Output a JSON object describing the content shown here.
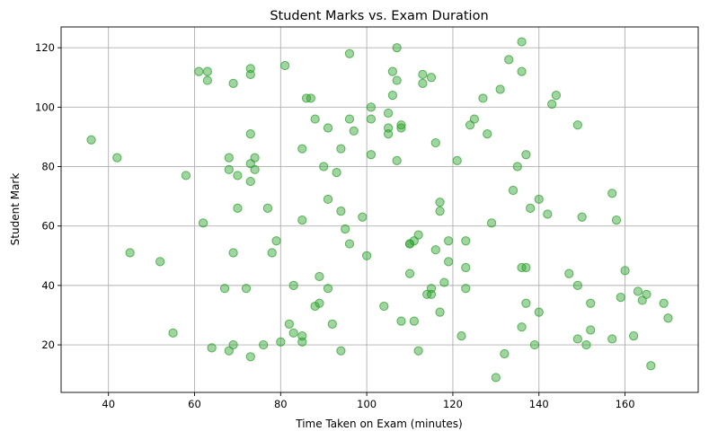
{
  "chart_data": {
    "type": "scatter",
    "title": "Student Marks vs. Exam Duration",
    "xlabel": "Time Taken on Exam (minutes)",
    "ylabel": "Student Mark",
    "xlim": [
      29,
      177
    ],
    "ylim": [
      4,
      127
    ],
    "xticks": [
      40,
      60,
      80,
      100,
      120,
      140,
      160
    ],
    "yticks": [
      20,
      40,
      60,
      80,
      100,
      120
    ],
    "grid": true,
    "point_color": "#2ca02c",
    "points": [
      [
        36,
        89
      ],
      [
        42,
        83
      ],
      [
        45,
        51
      ],
      [
        52,
        48
      ],
      [
        55,
        24
      ],
      [
        58,
        77
      ],
      [
        61,
        112
      ],
      [
        62,
        61
      ],
      [
        63,
        112
      ],
      [
        63,
        109
      ],
      [
        64,
        19
      ],
      [
        67,
        39
      ],
      [
        68,
        83
      ],
      [
        68,
        79
      ],
      [
        68,
        18
      ],
      [
        69,
        108
      ],
      [
        69,
        51
      ],
      [
        69,
        20
      ],
      [
        70,
        77
      ],
      [
        70,
        66
      ],
      [
        72,
        39
      ],
      [
        73,
        113
      ],
      [
        73,
        111
      ],
      [
        73,
        91
      ],
      [
        73,
        81
      ],
      [
        73,
        75
      ],
      [
        73,
        16
      ],
      [
        74,
        83
      ],
      [
        74,
        79
      ],
      [
        76,
        20
      ],
      [
        77,
        66
      ],
      [
        78,
        51
      ],
      [
        79,
        55
      ],
      [
        80,
        21
      ],
      [
        81,
        114
      ],
      [
        82,
        27
      ],
      [
        83,
        40
      ],
      [
        83,
        24
      ],
      [
        85,
        86
      ],
      [
        85,
        62
      ],
      [
        85,
        23
      ],
      [
        85,
        21
      ],
      [
        86,
        103
      ],
      [
        87,
        103
      ],
      [
        88,
        96
      ],
      [
        88,
        33
      ],
      [
        89,
        43
      ],
      [
        89,
        34
      ],
      [
        90,
        80
      ],
      [
        91,
        93
      ],
      [
        91,
        69
      ],
      [
        91,
        39
      ],
      [
        92,
        27
      ],
      [
        93,
        78
      ],
      [
        94,
        86
      ],
      [
        94,
        65
      ],
      [
        94,
        18
      ],
      [
        95,
        59
      ],
      [
        96,
        118
      ],
      [
        96,
        96
      ],
      [
        96,
        54
      ],
      [
        97,
        92
      ],
      [
        99,
        63
      ],
      [
        100,
        50
      ],
      [
        101,
        100
      ],
      [
        101,
        96
      ],
      [
        101,
        84
      ],
      [
        104,
        33
      ],
      [
        105,
        98
      ],
      [
        105,
        93
      ],
      [
        105,
        91
      ],
      [
        106,
        112
      ],
      [
        106,
        104
      ],
      [
        107,
        120
      ],
      [
        107,
        109
      ],
      [
        107,
        82
      ],
      [
        108,
        94
      ],
      [
        108,
        93
      ],
      [
        108,
        28
      ],
      [
        110,
        54
      ],
      [
        110,
        54
      ],
      [
        110,
        44
      ],
      [
        111,
        55
      ],
      [
        111,
        28
      ],
      [
        112,
        57
      ],
      [
        112,
        18
      ],
      [
        113,
        111
      ],
      [
        113,
        108
      ],
      [
        114,
        37
      ],
      [
        115,
        110
      ],
      [
        115,
        39
      ],
      [
        115,
        37
      ],
      [
        116,
        88
      ],
      [
        116,
        52
      ],
      [
        117,
        68
      ],
      [
        117,
        65
      ],
      [
        117,
        31
      ],
      [
        118,
        41
      ],
      [
        119,
        55
      ],
      [
        119,
        48
      ],
      [
        121,
        82
      ],
      [
        122,
        23
      ],
      [
        123,
        55
      ],
      [
        123,
        46
      ],
      [
        123,
        39
      ],
      [
        124,
        94
      ],
      [
        125,
        96
      ],
      [
        127,
        103
      ],
      [
        128,
        91
      ],
      [
        129,
        61
      ],
      [
        130,
        9
      ],
      [
        131,
        106
      ],
      [
        132,
        17
      ],
      [
        133,
        116
      ],
      [
        134,
        72
      ],
      [
        135,
        80
      ],
      [
        136,
        122
      ],
      [
        136,
        112
      ],
      [
        136,
        46
      ],
      [
        136,
        26
      ],
      [
        137,
        84
      ],
      [
        137,
        46
      ],
      [
        137,
        34
      ],
      [
        138,
        66
      ],
      [
        139,
        20
      ],
      [
        140,
        69
      ],
      [
        140,
        31
      ],
      [
        142,
        64
      ],
      [
        143,
        101
      ],
      [
        144,
        104
      ],
      [
        147,
        44
      ],
      [
        149,
        94
      ],
      [
        149,
        40
      ],
      [
        149,
        22
      ],
      [
        150,
        63
      ],
      [
        151,
        20
      ],
      [
        152,
        34
      ],
      [
        152,
        25
      ],
      [
        157,
        71
      ],
      [
        157,
        22
      ],
      [
        158,
        62
      ],
      [
        159,
        36
      ],
      [
        160,
        45
      ],
      [
        162,
        23
      ],
      [
        163,
        38
      ],
      [
        164,
        35
      ],
      [
        165,
        37
      ],
      [
        166,
        13
      ],
      [
        169,
        34
      ],
      [
        170,
        29
      ]
    ]
  }
}
